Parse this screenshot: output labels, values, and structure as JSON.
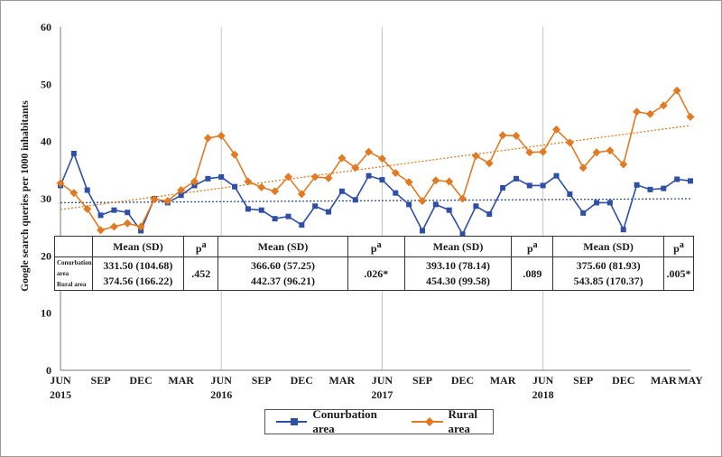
{
  "chart_data": {
    "type": "line",
    "ylabel": "Google search queries per 1000 inhabitants",
    "ylim": [
      0,
      60
    ],
    "yticks": [
      0,
      10,
      20,
      30,
      40,
      50,
      60
    ],
    "grid": "vertical lines at each June",
    "legend_position": "bottom",
    "xtick_labels": [
      {
        "i": 0,
        "label": "JUN",
        "year": "2015"
      },
      {
        "i": 3,
        "label": "SEP",
        "year": ""
      },
      {
        "i": 6,
        "label": "DEC",
        "year": ""
      },
      {
        "i": 9,
        "label": "MAR",
        "year": ""
      },
      {
        "i": 12,
        "label": "JUN",
        "year": "2016"
      },
      {
        "i": 15,
        "label": "SEP",
        "year": ""
      },
      {
        "i": 18,
        "label": "DEC",
        "year": ""
      },
      {
        "i": 21,
        "label": "MAR",
        "year": ""
      },
      {
        "i": 24,
        "label": "JUN",
        "year": "2017"
      },
      {
        "i": 27,
        "label": "SEP",
        "year": ""
      },
      {
        "i": 30,
        "label": "DEC",
        "year": ""
      },
      {
        "i": 33,
        "label": "MAR",
        "year": ""
      },
      {
        "i": 36,
        "label": "JUN",
        "year": "2018"
      },
      {
        "i": 39,
        "label": "SEP",
        "year": ""
      },
      {
        "i": 42,
        "label": "DEC",
        "year": ""
      },
      {
        "i": 45,
        "label": "MAR",
        "year": ""
      },
      {
        "i": 47,
        "label": "MAY",
        "year": ""
      }
    ],
    "series": [
      {
        "name": "Conurbation area",
        "color": "#2e4fa3",
        "marker": "square",
        "values": [
          32.3,
          37.9,
          31.5,
          27.1,
          28.0,
          27.6,
          24.4,
          30.0,
          29.3,
          30.6,
          32.3,
          33.5,
          33.8,
          32.1,
          28.2,
          28.0,
          26.5,
          26.9,
          25.4,
          28.7,
          27.7,
          31.3,
          29.8,
          34.0,
          33.3,
          31.0,
          29.0,
          24.4,
          29.0,
          28.0,
          23.8,
          28.7,
          27.3,
          31.9,
          33.5,
          32.3,
          32.3,
          34.0,
          30.8,
          27.5,
          29.3,
          29.3,
          24.6,
          32.4,
          31.6,
          31.8,
          33.4,
          33.1
        ]
      },
      {
        "name": "Rural area",
        "color": "#e07b24",
        "marker": "diamond",
        "values": [
          32.7,
          31.0,
          28.2,
          24.5,
          25.1,
          25.7,
          25.1,
          29.9,
          29.6,
          31.5,
          33.0,
          40.6,
          41.0,
          37.7,
          33.0,
          32.0,
          31.3,
          33.8,
          30.8,
          33.8,
          33.6,
          37.1,
          35.4,
          38.2,
          37.0,
          34.5,
          32.9,
          29.6,
          33.2,
          33.0,
          30.0,
          37.5,
          36.2,
          41.1,
          41.0,
          38.1,
          38.2,
          42.1,
          39.8,
          35.4,
          38.1,
          38.4,
          36.0,
          45.2,
          44.8,
          46.3,
          48.9,
          44.3
        ]
      }
    ],
    "trendlines": [
      {
        "series": "Conurbation area",
        "style": "dotted",
        "start": 29.3,
        "end": 30.0
      },
      {
        "series": "Rural area",
        "style": "dotted",
        "start": 28.1,
        "end": 42.8
      }
    ]
  },
  "table": {
    "header_mean": "Mean (SD)",
    "header_p_base": "p",
    "header_p_sup": "a",
    "row_label_conurbation": "Conurbation area",
    "row_label_rural": "Rural area",
    "blocks": [
      {
        "conurbation": "331.50 (104.68)",
        "rural": "374.56 (166.22)",
        "p": ".452"
      },
      {
        "conurbation": "366.60 (57.25)",
        "rural": "442.37 (96.21)",
        "p": ".026*"
      },
      {
        "conurbation": "393.10 (78.14)",
        "rural": "454.30 (99.58)",
        "p": ".089"
      },
      {
        "conurbation": "375.60 (81.93)",
        "rural": "543.85 (170.37)",
        "p": ".005*"
      }
    ]
  },
  "legend": {
    "conurbation_label": "Conurbation area",
    "rural_label": "Rural area"
  }
}
